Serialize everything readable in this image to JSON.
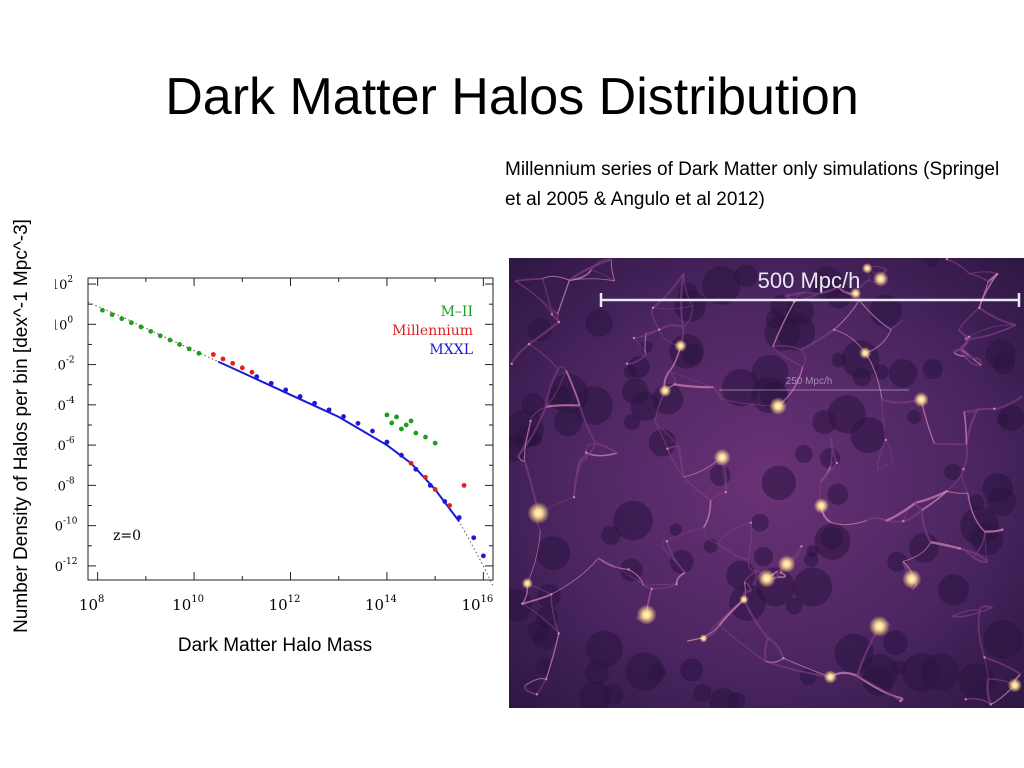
{
  "slide": {
    "title": "Dark Matter Halos Distribution",
    "caption": "Millennium series of Dark Matter only simulations (Springel et al 2005 & Angulo et al 2012)",
    "ylabel": "Number Density of Halos per bin [dex^-1 Mpc^-3]",
    "xlabel": "Dark Matter Halo Mass"
  },
  "chart_data": {
    "type": "scatter",
    "x_scale": "log",
    "y_scale": "log",
    "xlim_log10": [
      7.8,
      16.2
    ],
    "ylim_log10": [
      -12.7,
      2.3
    ],
    "x_ticks": [
      {
        "base": "10",
        "exp": "8"
      },
      {
        "base": "10",
        "exp": "10"
      },
      {
        "base": "10",
        "exp": "12"
      },
      {
        "base": "10",
        "exp": "14"
      },
      {
        "base": "10",
        "exp": "16"
      }
    ],
    "y_ticks": [
      {
        "base": "10",
        "exp": "2"
      },
      {
        "base": "10",
        "exp": "0"
      },
      {
        "base": "10",
        "exp": "-2"
      },
      {
        "base": "10",
        "exp": "-4"
      },
      {
        "base": "10",
        "exp": "-6"
      },
      {
        "base": "10",
        "exp": "-8"
      },
      {
        "base": "10",
        "exp": "-10"
      },
      {
        "base": "10",
        "exp": "-12"
      }
    ],
    "annotation": "z=0",
    "legend_position": "top-right",
    "model_curve_log10": [
      [
        7.8,
        1.1
      ],
      [
        8.5,
        0.38
      ],
      [
        9.0,
        -0.2
      ],
      [
        9.5,
        -0.75
      ],
      [
        10.0,
        -1.3
      ],
      [
        10.5,
        -1.85
      ],
      [
        11.0,
        -2.4
      ],
      [
        11.5,
        -2.95
      ],
      [
        12.0,
        -3.5
      ],
      [
        12.5,
        -4.05
      ],
      [
        13.0,
        -4.6
      ],
      [
        13.5,
        -5.3
      ],
      [
        14.0,
        -6.0
      ],
      [
        14.5,
        -6.9
      ],
      [
        15.0,
        -8.2
      ],
      [
        15.5,
        -9.8
      ],
      [
        16.0,
        -12.0
      ],
      [
        16.2,
        -13.0
      ]
    ],
    "series": [
      {
        "name": "M–II",
        "color": "#1e9e1e",
        "points_log10": [
          [
            8.1,
            0.7
          ],
          [
            8.3,
            0.48
          ],
          [
            8.5,
            0.28
          ],
          [
            8.7,
            0.08
          ],
          [
            8.9,
            -0.13
          ],
          [
            9.1,
            -0.35
          ],
          [
            9.3,
            -0.57
          ],
          [
            9.5,
            -0.78
          ],
          [
            9.7,
            -1.0
          ],
          [
            9.9,
            -1.22
          ],
          [
            10.1,
            -1.44
          ],
          [
            14.0,
            -4.5
          ],
          [
            14.1,
            -4.9
          ],
          [
            14.2,
            -4.6
          ],
          [
            14.3,
            -5.2
          ],
          [
            14.4,
            -5.0
          ],
          [
            14.5,
            -4.8
          ],
          [
            14.6,
            -5.4
          ],
          [
            14.8,
            -5.6
          ],
          [
            15.0,
            -5.9
          ]
        ]
      },
      {
        "name": "Millennium",
        "color": "#e02020",
        "points_log10": [
          [
            10.4,
            -1.5
          ],
          [
            10.6,
            -1.72
          ],
          [
            10.8,
            -1.94
          ],
          [
            11.0,
            -2.16
          ],
          [
            11.2,
            -2.38
          ],
          [
            14.5,
            -6.9
          ],
          [
            14.8,
            -7.6
          ],
          [
            15.0,
            -8.2
          ],
          [
            15.3,
            -9.0
          ],
          [
            15.6,
            -8.0
          ]
        ]
      },
      {
        "name": "MXXL",
        "color": "#1a1ad8",
        "points_log10": [
          [
            11.3,
            -2.6
          ],
          [
            11.6,
            -2.93
          ],
          [
            11.9,
            -3.26
          ],
          [
            12.2,
            -3.59
          ],
          [
            12.5,
            -3.92
          ],
          [
            12.8,
            -4.25
          ],
          [
            13.1,
            -4.58
          ],
          [
            13.4,
            -4.92
          ],
          [
            13.7,
            -5.3
          ],
          [
            14.0,
            -5.85
          ],
          [
            14.3,
            -6.5
          ],
          [
            14.6,
            -7.2
          ],
          [
            14.9,
            -8.0
          ],
          [
            15.2,
            -8.8
          ],
          [
            15.5,
            -9.6
          ],
          [
            15.8,
            -10.6
          ],
          [
            16.0,
            -11.5
          ]
        ]
      }
    ]
  },
  "simulation_image": {
    "scale_bar_label": "500 Mpc/h",
    "inner_scale_label": "250 Mpc/h",
    "colors": {
      "dark": "#2a1440",
      "mid": "#7a3a7e",
      "filament": "#d080b0",
      "node": "#fff2b0"
    }
  }
}
